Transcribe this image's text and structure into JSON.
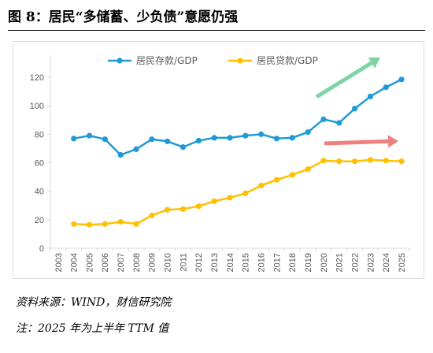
{
  "figure": {
    "title": "图 8：居民“多储蓄、少负债”意愿仍强",
    "source": "资料来源：WIND，财信研究院",
    "note": "注：2025 年为上半年 TTM 值"
  },
  "colors": {
    "deposit": "#1e9bd7",
    "loan": "#ffc000",
    "up_arrow": "#7fd3a5",
    "flat_arrow": "#f08080",
    "axis": "#d9d9d9",
    "tick_text": "#595959"
  },
  "chart_data": {
    "type": "line",
    "categories": [
      "2003",
      "2004",
      "2005",
      "2006",
      "2007",
      "2008",
      "2009",
      "2010",
      "2011",
      "2012",
      "2013",
      "2014",
      "2015",
      "2016",
      "2017",
      "2018",
      "2019",
      "2020",
      "2021",
      "2022",
      "2023",
      "2024",
      "2025"
    ],
    "series": [
      {
        "name": "居民存款/GDP",
        "color": "#1e9bd7",
        "values": [
          null,
          77,
          79,
          76.5,
          65.5,
          69.5,
          76.5,
          75,
          71,
          75.5,
          77.5,
          77.5,
          79,
          80,
          77,
          77.5,
          81.5,
          90.5,
          88,
          98,
          106.5,
          113,
          118.5
        ]
      },
      {
        "name": "居民贷款/GDP",
        "color": "#ffc000",
        "values": [
          null,
          17,
          16.5,
          17,
          18.5,
          17,
          23,
          27,
          27.5,
          29.5,
          33,
          35.5,
          38.5,
          44,
          48,
          51.5,
          55.5,
          61.5,
          61,
          61,
          62,
          61.5,
          61
        ]
      }
    ],
    "yticks": [
      0,
      20,
      40,
      60,
      80,
      100,
      120
    ],
    "ylim": [
      0,
      130
    ],
    "legend": "top-center",
    "grid": false,
    "annotations": [
      {
        "type": "arrow",
        "color": "#7fd3a5",
        "meaning": "rising deposits"
      },
      {
        "type": "arrow",
        "color": "#f08080",
        "meaning": "flat loans"
      }
    ]
  }
}
